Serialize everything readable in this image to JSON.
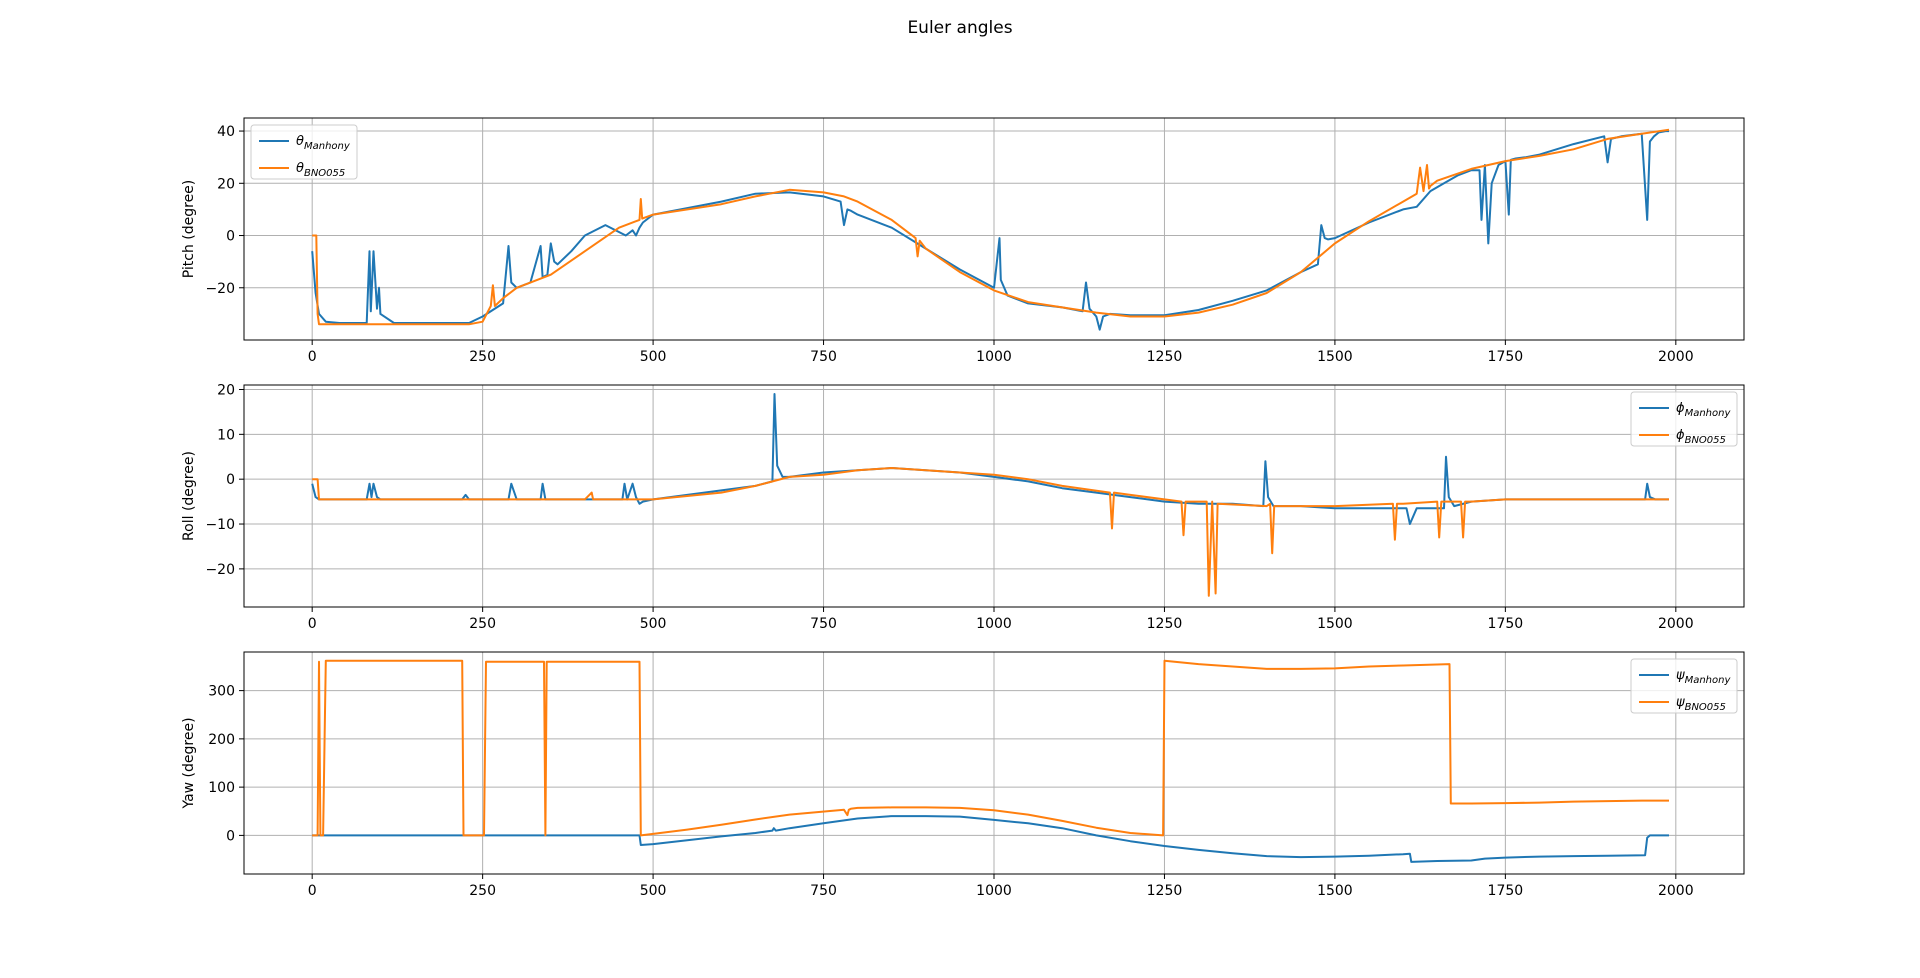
{
  "figure": {
    "title": "Euler angles"
  },
  "colors": {
    "manhony": "#1f77b4",
    "bno055": "#ff7f0e",
    "grid": "#b0b0b0"
  },
  "chart_data": [
    {
      "type": "line",
      "title": "",
      "xlabel": "",
      "ylabel": "Pitch (degree)",
      "xlim": [
        -100,
        2100
      ],
      "ylim": [
        -40,
        45
      ],
      "xticks": [
        0,
        250,
        500,
        750,
        1000,
        1250,
        1500,
        1750,
        2000
      ],
      "yticks": [
        -20,
        0,
        20,
        40
      ],
      "grid": true,
      "legend_position": "upper left",
      "legend": [
        {
          "symbol": "θ",
          "subscript": "Manhony",
          "color": "#1f77b4"
        },
        {
          "symbol": "θ",
          "subscript": "BNO055",
          "color": "#ff7f0e"
        }
      ],
      "series": [
        {
          "key": "manhony",
          "color": "#1f77b4",
          "x": [
            0,
            5,
            10,
            20,
            40,
            80,
            84,
            86,
            90,
            95,
            98,
            100,
            120,
            150,
            180,
            200,
            230,
            250,
            280,
            288,
            292,
            300,
            320,
            335,
            338,
            345,
            350,
            355,
            360,
            380,
            400,
            430,
            460,
            470,
            475,
            480,
            485,
            500,
            550,
            600,
            650,
            700,
            750,
            775,
            780,
            785,
            790,
            800,
            850,
            900,
            950,
            1000,
            1008,
            1010,
            1020,
            1050,
            1100,
            1130,
            1135,
            1140,
            1150,
            1155,
            1160,
            1170,
            1200,
            1250,
            1300,
            1350,
            1400,
            1450,
            1475,
            1480,
            1485,
            1490,
            1500,
            1550,
            1600,
            1620,
            1640,
            1660,
            1680,
            1700,
            1712,
            1715,
            1720,
            1725,
            1730,
            1740,
            1750,
            1755,
            1758,
            1765,
            1780,
            1800,
            1850,
            1895,
            1900,
            1905,
            1920,
            1950,
            1958,
            1962,
            1968,
            1975,
            1985,
            1990
          ],
          "y": [
            -6,
            -22,
            -30,
            -33,
            -33.5,
            -33.5,
            -6,
            -29,
            -6,
            -28,
            -20,
            -30,
            -33.5,
            -33.5,
            -33.5,
            -33.5,
            -33.5,
            -31,
            -26,
            -4,
            -18,
            -20,
            -18,
            -4,
            -16,
            -15,
            -3,
            -10,
            -11,
            -6,
            0,
            4,
            0,
            2,
            0,
            3,
            5,
            8,
            10.5,
            13,
            16,
            16.5,
            15,
            13,
            4,
            10,
            9.5,
            8,
            3,
            -5,
            -13,
            -20,
            -1,
            -17,
            -23,
            -26,
            -27.5,
            -29,
            -18,
            -28,
            -31,
            -36,
            -31,
            -30,
            -30.5,
            -30.5,
            -28.5,
            -25,
            -21,
            -14,
            -11,
            4,
            -1,
            -1.5,
            -1,
            5,
            10,
            11,
            17,
            20,
            23,
            25,
            25,
            6,
            27,
            -3,
            20,
            27,
            28.5,
            8,
            29,
            29.5,
            30,
            31,
            35,
            38,
            28,
            37,
            38,
            39,
            6,
            36,
            38,
            39.5,
            40,
            40
          ]
        },
        {
          "key": "bno055",
          "color": "#ff7f0e",
          "x": [
            0,
            6,
            8,
            10,
            30,
            100,
            150,
            200,
            230,
            250,
            262,
            265,
            268,
            280,
            300,
            350,
            400,
            450,
            480,
            482,
            484,
            500,
            600,
            650,
            700,
            750,
            780,
            800,
            850,
            885,
            888,
            891,
            900,
            950,
            1000,
            1050,
            1100,
            1150,
            1200,
            1250,
            1300,
            1350,
            1400,
            1450,
            1500,
            1550,
            1600,
            1620,
            1625,
            1630,
            1635,
            1638,
            1640,
            1645,
            1650,
            1700,
            1750,
            1800,
            1850,
            1900,
            1950,
            1990
          ],
          "y": [
            0,
            0,
            -30,
            -34,
            -34,
            -34,
            -34,
            -34,
            -34,
            -33,
            -27,
            -19,
            -27,
            -24,
            -20,
            -15,
            -6,
            3,
            6,
            14,
            6.5,
            8,
            12,
            15,
            17.5,
            16.5,
            15,
            13,
            6,
            -1,
            -8,
            -2,
            -5,
            -14,
            -21,
            -25.5,
            -27.5,
            -29.5,
            -31,
            -31,
            -29.5,
            -26.5,
            -22,
            -14,
            -3,
            5.5,
            13,
            16,
            26,
            17,
            27,
            18,
            19,
            20,
            21,
            25.5,
            28.5,
            30.5,
            33,
            37,
            39,
            40.5
          ]
        }
      ]
    },
    {
      "type": "line",
      "title": "",
      "xlabel": "",
      "ylabel": "Roll (degree)",
      "xlim": [
        -100,
        2100
      ],
      "ylim": [
        -28.5,
        21
      ],
      "xticks": [
        0,
        250,
        500,
        750,
        1000,
        1250,
        1500,
        1750,
        2000
      ],
      "yticks": [
        -20,
        -10,
        0,
        10,
        20
      ],
      "grid": true,
      "legend_position": "upper right",
      "legend": [
        {
          "symbol": "ϕ",
          "subscript": "Manhony",
          "color": "#1f77b4"
        },
        {
          "symbol": "ϕ",
          "subscript": "BNO055",
          "color": "#ff7f0e"
        }
      ],
      "series": [
        {
          "key": "manhony",
          "color": "#1f77b4",
          "x": [
            0,
            5,
            10,
            50,
            80,
            84,
            87,
            90,
            95,
            100,
            150,
            200,
            220,
            225,
            230,
            288,
            292,
            300,
            335,
            338,
            342,
            400,
            455,
            458,
            462,
            470,
            475,
            480,
            485,
            500,
            550,
            600,
            650,
            675,
            678,
            682,
            690,
            700,
            750,
            800,
            850,
            900,
            950,
            1000,
            1050,
            1100,
            1150,
            1200,
            1250,
            1300,
            1350,
            1395,
            1398,
            1402,
            1410,
            1450,
            1500,
            1550,
            1600,
            1605,
            1610,
            1620,
            1660,
            1663,
            1667,
            1675,
            1700,
            1750,
            1800,
            1850,
            1900,
            1955,
            1958,
            1962,
            1970,
            1990
          ],
          "y": [
            -1,
            -4,
            -4.5,
            -4.5,
            -4.5,
            -1,
            -4,
            -1,
            -4,
            -4.5,
            -4.5,
            -4.5,
            -4.5,
            -3.5,
            -4.5,
            -4.5,
            -1,
            -4.5,
            -4.5,
            -1,
            -4.5,
            -4.5,
            -4.5,
            -1,
            -4.5,
            -1,
            -4,
            -5.5,
            -5,
            -4.5,
            -3.5,
            -2.5,
            -1.5,
            -0.5,
            19,
            3,
            0.5,
            0.5,
            1.5,
            2,
            2.5,
            2,
            1.5,
            0.5,
            -0.5,
            -2,
            -3,
            -4,
            -5,
            -5.5,
            -5.5,
            -6,
            4,
            -4,
            -6,
            -6,
            -6.5,
            -6.5,
            -6.5,
            -6.5,
            -10,
            -6.5,
            -6.5,
            5,
            -4,
            -6,
            -5,
            -4.5,
            -4.5,
            -4.5,
            -4.5,
            -4.5,
            -1,
            -4,
            -4.5,
            -4.5
          ]
        },
        {
          "key": "bno055",
          "color": "#ff7f0e",
          "x": [
            0,
            8,
            10,
            100,
            200,
            300,
            400,
            410,
            412,
            414,
            450,
            500,
            600,
            650,
            700,
            750,
            800,
            850,
            900,
            950,
            1000,
            1050,
            1100,
            1170,
            1173,
            1176,
            1200,
            1250,
            1275,
            1278,
            1281,
            1300,
            1312,
            1315,
            1320,
            1325,
            1328,
            1400,
            1405,
            1408,
            1411,
            1450,
            1500,
            1585,
            1588,
            1591,
            1600,
            1650,
            1653,
            1656,
            1685,
            1688,
            1691,
            1700,
            1750,
            1800,
            1850,
            1900,
            1950,
            1990
          ],
          "y": [
            0,
            0,
            -4.5,
            -4.5,
            -4.5,
            -4.5,
            -4.5,
            -3,
            -4.5,
            -4.5,
            -4.5,
            -4.5,
            -3,
            -1.5,
            0.5,
            1,
            2,
            2.5,
            2,
            1.5,
            1,
            0,
            -1.5,
            -3,
            -11,
            -3,
            -3.5,
            -4.5,
            -5,
            -12.5,
            -5,
            -5,
            -5,
            -26,
            -5,
            -25.5,
            -5.5,
            -6,
            -5.5,
            -16.5,
            -6,
            -6,
            -6,
            -5.5,
            -13.5,
            -5.5,
            -5.5,
            -5,
            -13,
            -5,
            -5,
            -13,
            -5,
            -5,
            -4.5,
            -4.5,
            -4.5,
            -4.5,
            -4.5,
            -4.5
          ]
        }
      ]
    },
    {
      "type": "line",
      "title": "",
      "xlabel": "",
      "ylabel": "Yaw (degree)",
      "xlim": [
        -100,
        2100
      ],
      "ylim": [
        -80,
        380
      ],
      "xticks": [
        0,
        250,
        500,
        750,
        1000,
        1250,
        1500,
        1750,
        2000
      ],
      "yticks": [
        0,
        100,
        200,
        300
      ],
      "grid": true,
      "legend_position": "upper right",
      "legend": [
        {
          "symbol": "ψ",
          "subscript": "Manhony",
          "color": "#1f77b4"
        },
        {
          "symbol": "ψ",
          "subscript": "BNO055",
          "color": "#ff7f0e"
        }
      ],
      "series": [
        {
          "key": "manhony",
          "color": "#1f77b4",
          "x": [
            0,
            50,
            100,
            200,
            300,
            400,
            480,
            482,
            500,
            550,
            600,
            650,
            675,
            677,
            680,
            700,
            750,
            800,
            850,
            900,
            950,
            1000,
            1050,
            1100,
            1150,
            1200,
            1250,
            1300,
            1350,
            1400,
            1450,
            1500,
            1550,
            1600,
            1610,
            1612,
            1650,
            1700,
            1720,
            1750,
            1800,
            1850,
            1900,
            1955,
            1958,
            1962,
            1970,
            1990
          ],
          "y": [
            0,
            0,
            0,
            0,
            0,
            0,
            0,
            -20,
            -18,
            -10,
            -2,
            5,
            10,
            15,
            10,
            15,
            25,
            35,
            40,
            40,
            39,
            32,
            25,
            15,
            0,
            -12,
            -22,
            -30,
            -37,
            -43,
            -45,
            -44,
            -42,
            -39,
            -38,
            -55,
            -53,
            -52,
            -48,
            -46,
            -44,
            -43,
            -42,
            -41,
            -5,
            0,
            0,
            0
          ]
        },
        {
          "key": "bno055",
          "color": "#ff7f0e",
          "x": [
            0,
            8,
            10,
            12,
            14,
            16,
            20,
            220,
            222,
            252,
            255,
            340,
            342,
            344,
            346,
            480,
            482,
            500,
            550,
            600,
            650,
            700,
            780,
            785,
            787,
            790,
            800,
            850,
            900,
            950,
            1000,
            1050,
            1100,
            1150,
            1200,
            1248,
            1250,
            1300,
            1350,
            1400,
            1450,
            1500,
            1550,
            1600,
            1668,
            1670,
            1700,
            1750,
            1800,
            1850,
            1900,
            1950,
            1990
          ],
          "y": [
            0,
            0,
            360,
            0,
            0,
            0,
            362,
            362,
            0,
            0,
            360,
            360,
            0,
            360,
            360,
            360,
            0,
            3,
            12,
            22,
            33,
            43,
            53,
            42,
            53,
            55,
            57,
            58,
            58,
            57,
            52,
            43,
            30,
            16,
            5,
            0,
            362,
            355,
            350,
            345,
            345,
            346,
            350,
            352,
            355,
            66,
            66,
            67,
            68,
            70,
            71,
            72,
            72
          ]
        }
      ]
    }
  ]
}
